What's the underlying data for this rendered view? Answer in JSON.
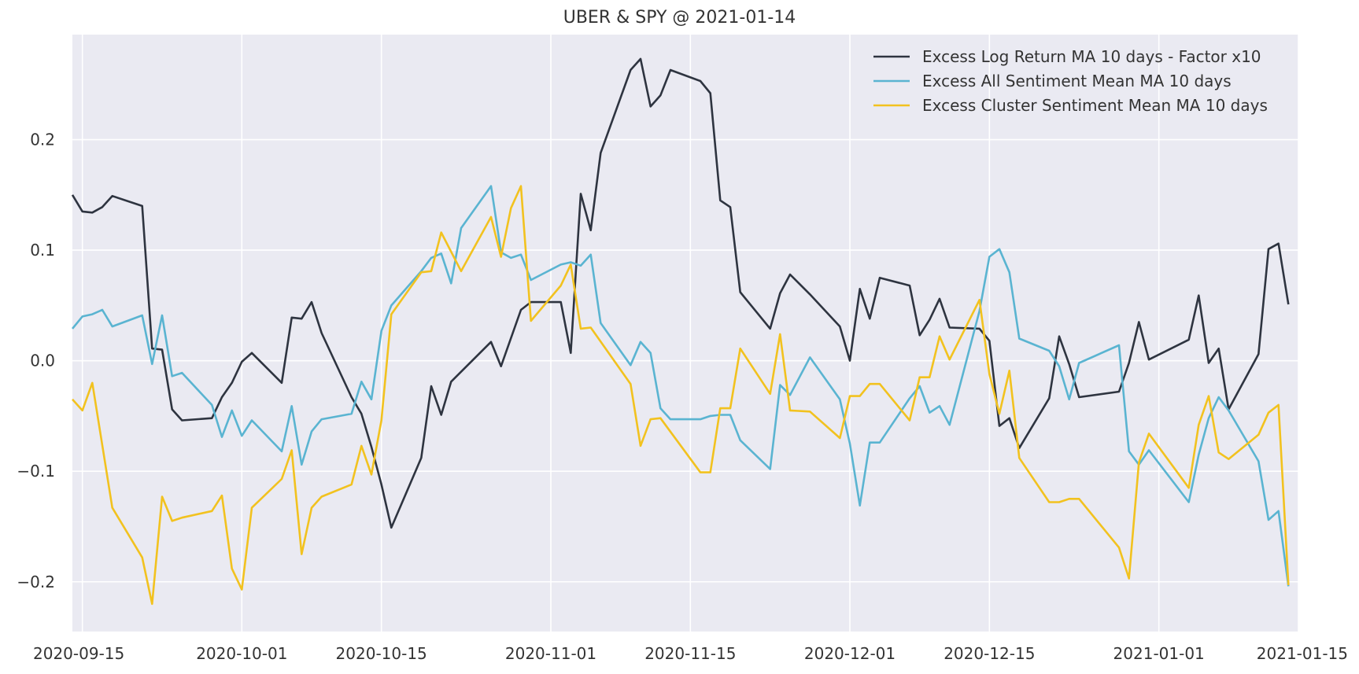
{
  "chart_data": {
    "type": "line",
    "title": "UBER & SPY @ 2021-01-14",
    "xlabel": "",
    "ylabel": "",
    "x_type": "date",
    "xlim": [
      "2020-09-14",
      "2021-01-15"
    ],
    "ylim": [
      -0.245,
      0.295
    ],
    "x_ticks": [
      "2020-09-15",
      "2020-10-01",
      "2020-10-15",
      "2020-11-01",
      "2020-11-15",
      "2020-12-01",
      "2020-12-15",
      "2021-01-01",
      "2021-01-15"
    ],
    "y_ticks": [
      -0.2,
      -0.1,
      0.0,
      0.1,
      0.2
    ],
    "y_tick_labels": [
      "−0.2",
      "−0.1",
      "0.0",
      "0.1",
      "0.2"
    ],
    "grid": true,
    "legend_position": "top-right",
    "background": "#eaeaf2",
    "series": [
      {
        "name": "Excess Log Return MA 10 days - Factor x10",
        "color": "#2e3440",
        "points": [
          [
            "2020-09-14",
            0.15
          ],
          [
            "2020-09-15",
            0.135
          ],
          [
            "2020-09-16",
            0.134
          ],
          [
            "2020-09-17",
            0.139
          ],
          [
            "2020-09-18",
            0.149
          ],
          [
            "2020-09-21",
            0.14
          ],
          [
            "2020-09-22",
            0.011
          ],
          [
            "2020-09-23",
            0.01
          ],
          [
            "2020-09-24",
            -0.044
          ],
          [
            "2020-09-25",
            -0.054
          ],
          [
            "2020-09-28",
            -0.052
          ],
          [
            "2020-09-29",
            -0.033
          ],
          [
            "2020-09-30",
            -0.02
          ],
          [
            "2020-10-01",
            -0.001
          ],
          [
            "2020-10-02",
            0.007
          ],
          [
            "2020-10-05",
            -0.02
          ],
          [
            "2020-10-06",
            0.039
          ],
          [
            "2020-10-07",
            0.038
          ],
          [
            "2020-10-08",
            0.053
          ],
          [
            "2020-10-09",
            0.025
          ],
          [
            "2020-10-12",
            -0.033
          ],
          [
            "2020-10-13",
            -0.048
          ],
          [
            "2020-10-14",
            -0.078
          ],
          [
            "2020-10-15",
            -0.112
          ],
          [
            "2020-10-16",
            -0.151
          ],
          [
            "2020-10-19",
            -0.088
          ],
          [
            "2020-10-20",
            -0.023
          ],
          [
            "2020-10-21",
            -0.049
          ],
          [
            "2020-10-22",
            -0.019
          ],
          [
            "2020-10-26",
            0.017
          ],
          [
            "2020-10-27",
            -0.005
          ],
          [
            "2020-10-29",
            0.046
          ],
          [
            "2020-10-30",
            0.053
          ],
          [
            "2020-11-02",
            0.053
          ],
          [
            "2020-11-03",
            0.007
          ],
          [
            "2020-11-04",
            0.151
          ],
          [
            "2020-11-05",
            0.118
          ],
          [
            "2020-11-06",
            0.188
          ],
          [
            "2020-11-09",
            0.263
          ],
          [
            "2020-11-10",
            0.273
          ],
          [
            "2020-11-11",
            0.23
          ],
          [
            "2020-11-12",
            0.24
          ],
          [
            "2020-11-13",
            0.263
          ],
          [
            "2020-11-16",
            0.253
          ],
          [
            "2020-11-17",
            0.242
          ],
          [
            "2020-11-18",
            0.145
          ],
          [
            "2020-11-19",
            0.139
          ],
          [
            "2020-11-20",
            0.062
          ],
          [
            "2020-11-23",
            0.029
          ],
          [
            "2020-11-24",
            0.061
          ],
          [
            "2020-11-25",
            0.078
          ],
          [
            "2020-11-27",
            0.06
          ],
          [
            "2020-11-30",
            0.031
          ],
          [
            "2020-12-01",
            0.0
          ],
          [
            "2020-12-02",
            0.065
          ],
          [
            "2020-12-03",
            0.038
          ],
          [
            "2020-12-04",
            0.075
          ],
          [
            "2020-12-07",
            0.068
          ],
          [
            "2020-12-08",
            0.023
          ],
          [
            "2020-12-09",
            0.037
          ],
          [
            "2020-12-10",
            0.056
          ],
          [
            "2020-12-11",
            0.03
          ],
          [
            "2020-12-14",
            0.029
          ],
          [
            "2020-12-15",
            0.018
          ],
          [
            "2020-12-16",
            -0.059
          ],
          [
            "2020-12-17",
            -0.052
          ],
          [
            "2020-12-18",
            -0.079
          ],
          [
            "2020-12-21",
            -0.034
          ],
          [
            "2020-12-22",
            0.022
          ],
          [
            "2020-12-23",
            -0.003
          ],
          [
            "2020-12-24",
            -0.033
          ],
          [
            "2020-12-28",
            -0.028
          ],
          [
            "2020-12-29",
            -0.002
          ],
          [
            "2020-12-30",
            0.035
          ],
          [
            "2020-12-31",
            0.001
          ],
          [
            "2021-01-04",
            0.019
          ],
          [
            "2021-01-05",
            0.059
          ],
          [
            "2021-01-06",
            -0.002
          ],
          [
            "2021-01-07",
            0.011
          ],
          [
            "2021-01-08",
            -0.044
          ],
          [
            "2021-01-11",
            0.006
          ],
          [
            "2021-01-12",
            0.101
          ],
          [
            "2021-01-13",
            0.106
          ],
          [
            "2021-01-14",
            0.051
          ]
        ]
      },
      {
        "name": "Excess All Sentiment Mean MA 10 days",
        "color": "#5ab4d1",
        "points": [
          [
            "2020-09-14",
            0.029
          ],
          [
            "2020-09-15",
            0.04
          ],
          [
            "2020-09-16",
            0.042
          ],
          [
            "2020-09-17",
            0.046
          ],
          [
            "2020-09-18",
            0.031
          ],
          [
            "2020-09-21",
            0.041
          ],
          [
            "2020-09-22",
            -0.003
          ],
          [
            "2020-09-23",
            0.041
          ],
          [
            "2020-09-24",
            -0.014
          ],
          [
            "2020-09-25",
            -0.011
          ],
          [
            "2020-09-28",
            -0.04
          ],
          [
            "2020-09-29",
            -0.069
          ],
          [
            "2020-09-30",
            -0.045
          ],
          [
            "2020-10-01",
            -0.068
          ],
          [
            "2020-10-02",
            -0.054
          ],
          [
            "2020-10-05",
            -0.082
          ],
          [
            "2020-10-06",
            -0.041
          ],
          [
            "2020-10-07",
            -0.094
          ],
          [
            "2020-10-08",
            -0.064
          ],
          [
            "2020-10-09",
            -0.053
          ],
          [
            "2020-10-12",
            -0.048
          ],
          [
            "2020-10-13",
            -0.019
          ],
          [
            "2020-10-14",
            -0.035
          ],
          [
            "2020-10-15",
            0.027
          ],
          [
            "2020-10-16",
            0.05
          ],
          [
            "2020-10-19",
            0.081
          ],
          [
            "2020-10-20",
            0.093
          ],
          [
            "2020-10-21",
            0.097
          ],
          [
            "2020-10-22",
            0.07
          ],
          [
            "2020-10-23",
            0.12
          ],
          [
            "2020-10-26",
            0.158
          ],
          [
            "2020-10-27",
            0.098
          ],
          [
            "2020-10-28",
            0.093
          ],
          [
            "2020-10-29",
            0.096
          ],
          [
            "2020-10-30",
            0.073
          ],
          [
            "2020-11-02",
            0.087
          ],
          [
            "2020-11-03",
            0.089
          ],
          [
            "2020-11-04",
            0.086
          ],
          [
            "2020-11-05",
            0.096
          ],
          [
            "2020-11-06",
            0.034
          ],
          [
            "2020-11-09",
            -0.004
          ],
          [
            "2020-11-10",
            0.017
          ],
          [
            "2020-11-11",
            0.007
          ],
          [
            "2020-11-12",
            -0.043
          ],
          [
            "2020-11-13",
            -0.053
          ],
          [
            "2020-11-16",
            -0.053
          ],
          [
            "2020-11-17",
            -0.05
          ],
          [
            "2020-11-18",
            -0.049
          ],
          [
            "2020-11-19",
            -0.049
          ],
          [
            "2020-11-20",
            -0.072
          ],
          [
            "2020-11-23",
            -0.098
          ],
          [
            "2020-11-24",
            -0.022
          ],
          [
            "2020-11-25",
            -0.031
          ],
          [
            "2020-11-27",
            0.003
          ],
          [
            "2020-11-30",
            -0.035
          ],
          [
            "2020-12-01",
            -0.075
          ],
          [
            "2020-12-02",
            -0.131
          ],
          [
            "2020-12-03",
            -0.074
          ],
          [
            "2020-12-04",
            -0.074
          ],
          [
            "2020-12-07",
            -0.034
          ],
          [
            "2020-12-08",
            -0.023
          ],
          [
            "2020-12-09",
            -0.047
          ],
          [
            "2020-12-10",
            -0.041
          ],
          [
            "2020-12-11",
            -0.058
          ],
          [
            "2020-12-14",
            0.045
          ],
          [
            "2020-12-15",
            0.094
          ],
          [
            "2020-12-16",
            0.101
          ],
          [
            "2020-12-17",
            0.08
          ],
          [
            "2020-12-18",
            0.02
          ],
          [
            "2020-12-21",
            0.009
          ],
          [
            "2020-12-22",
            -0.005
          ],
          [
            "2020-12-23",
            -0.035
          ],
          [
            "2020-12-24",
            -0.002
          ],
          [
            "2020-12-28",
            0.014
          ],
          [
            "2020-12-29",
            -0.082
          ],
          [
            "2020-12-30",
            -0.094
          ],
          [
            "2020-12-31",
            -0.081
          ],
          [
            "2021-01-04",
            -0.128
          ],
          [
            "2021-01-05",
            -0.085
          ],
          [
            "2021-01-06",
            -0.052
          ],
          [
            "2021-01-07",
            -0.033
          ],
          [
            "2021-01-08",
            -0.045
          ],
          [
            "2021-01-11",
            -0.091
          ],
          [
            "2021-01-12",
            -0.144
          ],
          [
            "2021-01-13",
            -0.136
          ],
          [
            "2021-01-14",
            -0.204
          ]
        ]
      },
      {
        "name": "Excess Cluster Sentiment Mean MA 10 days",
        "color": "#f2c21f",
        "points": [
          [
            "2020-09-14",
            -0.035
          ],
          [
            "2020-09-15",
            -0.045
          ],
          [
            "2020-09-16",
            -0.02
          ],
          [
            "2020-09-18",
            -0.133
          ],
          [
            "2020-09-21",
            -0.178
          ],
          [
            "2020-09-22",
            -0.22
          ],
          [
            "2020-09-23",
            -0.123
          ],
          [
            "2020-09-24",
            -0.145
          ],
          [
            "2020-09-25",
            -0.142
          ],
          [
            "2020-09-28",
            -0.136
          ],
          [
            "2020-09-29",
            -0.122
          ],
          [
            "2020-09-30",
            -0.188
          ],
          [
            "2020-10-01",
            -0.207
          ],
          [
            "2020-10-02",
            -0.133
          ],
          [
            "2020-10-05",
            -0.107
          ],
          [
            "2020-10-06",
            -0.081
          ],
          [
            "2020-10-07",
            -0.175
          ],
          [
            "2020-10-08",
            -0.133
          ],
          [
            "2020-10-09",
            -0.123
          ],
          [
            "2020-10-12",
            -0.112
          ],
          [
            "2020-10-13",
            -0.077
          ],
          [
            "2020-10-14",
            -0.103
          ],
          [
            "2020-10-15",
            -0.054
          ],
          [
            "2020-10-16",
            0.042
          ],
          [
            "2020-10-19",
            0.08
          ],
          [
            "2020-10-20",
            0.081
          ],
          [
            "2020-10-21",
            0.116
          ],
          [
            "2020-10-23",
            0.081
          ],
          [
            "2020-10-26",
            0.13
          ],
          [
            "2020-10-27",
            0.094
          ],
          [
            "2020-10-28",
            0.138
          ],
          [
            "2020-10-29",
            0.158
          ],
          [
            "2020-10-30",
            0.036
          ],
          [
            "2020-11-02",
            0.068
          ],
          [
            "2020-11-03",
            0.087
          ],
          [
            "2020-11-04",
            0.029
          ],
          [
            "2020-11-05",
            0.03
          ],
          [
            "2020-11-09",
            -0.021
          ],
          [
            "2020-11-10",
            -0.077
          ],
          [
            "2020-11-11",
            -0.053
          ],
          [
            "2020-11-12",
            -0.052
          ],
          [
            "2020-11-16",
            -0.101
          ],
          [
            "2020-11-17",
            -0.101
          ],
          [
            "2020-11-18",
            -0.043
          ],
          [
            "2020-11-19",
            -0.043
          ],
          [
            "2020-11-20",
            0.011
          ],
          [
            "2020-11-23",
            -0.03
          ],
          [
            "2020-11-24",
            0.024
          ],
          [
            "2020-11-25",
            -0.045
          ],
          [
            "2020-11-27",
            -0.046
          ],
          [
            "2020-11-30",
            -0.07
          ],
          [
            "2020-12-01",
            -0.032
          ],
          [
            "2020-12-02",
            -0.032
          ],
          [
            "2020-12-03",
            -0.021
          ],
          [
            "2020-12-04",
            -0.021
          ],
          [
            "2020-12-07",
            -0.054
          ],
          [
            "2020-12-08",
            -0.015
          ],
          [
            "2020-12-09",
            -0.015
          ],
          [
            "2020-12-10",
            0.022
          ],
          [
            "2020-12-11",
            0.001
          ],
          [
            "2020-12-14",
            0.055
          ],
          [
            "2020-12-15",
            -0.012
          ],
          [
            "2020-12-16",
            -0.048
          ],
          [
            "2020-12-17",
            -0.009
          ],
          [
            "2020-12-18",
            -0.088
          ],
          [
            "2020-12-21",
            -0.128
          ],
          [
            "2020-12-22",
            -0.128
          ],
          [
            "2020-12-23",
            -0.125
          ],
          [
            "2020-12-24",
            -0.125
          ],
          [
            "2020-12-28",
            -0.169
          ],
          [
            "2020-12-29",
            -0.197
          ],
          [
            "2020-12-30",
            -0.092
          ],
          [
            "2020-12-31",
            -0.066
          ],
          [
            "2021-01-04",
            -0.115
          ],
          [
            "2021-01-05",
            -0.058
          ],
          [
            "2021-01-06",
            -0.032
          ],
          [
            "2021-01-07",
            -0.083
          ],
          [
            "2021-01-08",
            -0.089
          ],
          [
            "2021-01-11",
            -0.067
          ],
          [
            "2021-01-12",
            -0.047
          ],
          [
            "2021-01-13",
            -0.04
          ],
          [
            "2021-01-14",
            -0.203
          ]
        ]
      }
    ]
  }
}
